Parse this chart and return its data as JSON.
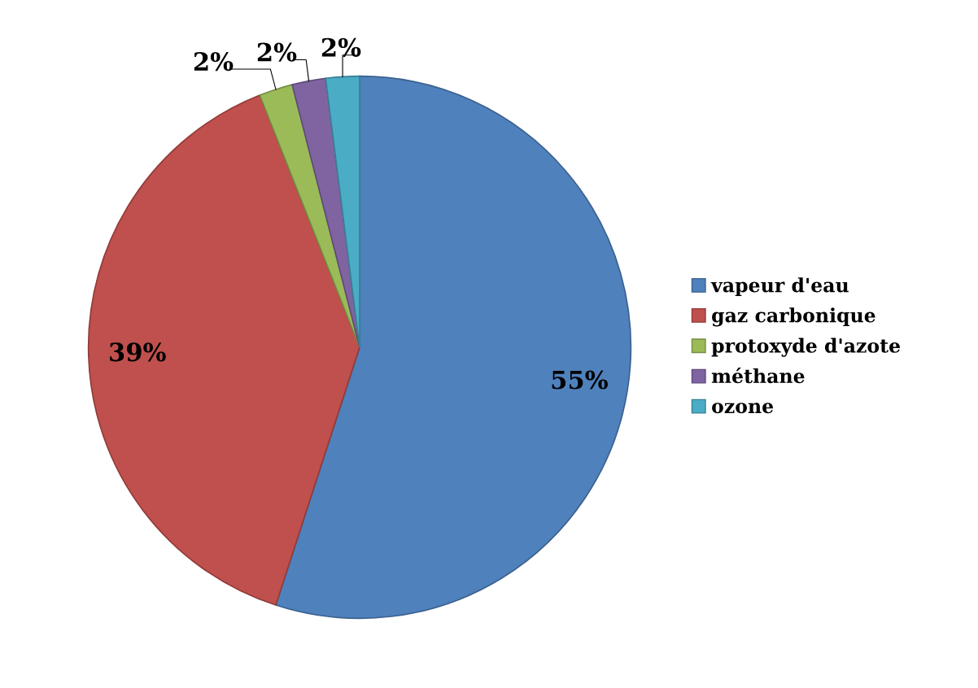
{
  "chart_data": {
    "type": "pie",
    "categories": [
      "vapeur d'eau",
      "gaz carbonique",
      "protoxyde d'azote",
      "méthane",
      "ozone"
    ],
    "values": [
      55,
      39,
      2,
      2,
      2
    ],
    "colors": [
      "#4f81bd",
      "#c0504d",
      "#9bbb59",
      "#8064a2",
      "#4bacc6"
    ],
    "value_labels": [
      "55%",
      "39%",
      "2%",
      "2%",
      "2%"
    ],
    "legend": "right"
  }
}
